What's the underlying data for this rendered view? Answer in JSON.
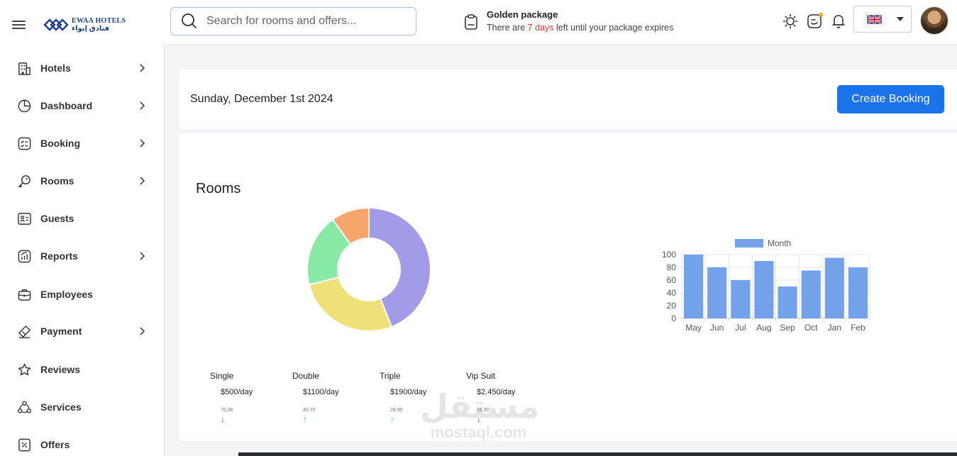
{
  "header": {
    "logo": {
      "text_en": "EWAA HOTELS",
      "text_ar": "فنادق إيواء"
    },
    "search": {
      "placeholder": "Search for rooms and offers..."
    },
    "package": {
      "title": "Golden package",
      "message_prefix": "There are ",
      "days": "7 days",
      "message_suffix": " left until your package expires"
    },
    "icons": [
      "sun-icon",
      "chat-icon",
      "bell-icon"
    ],
    "language": {
      "flag": "uk-flag-icon"
    }
  },
  "sidebar": {
    "items": [
      {
        "label": "Hotels",
        "icon": "hotel-icon",
        "has_chevron": true
      },
      {
        "label": "Dashboard",
        "icon": "pie-icon",
        "has_chevron": true
      },
      {
        "label": "Booking",
        "icon": "checklist-icon",
        "has_chevron": true
      },
      {
        "label": "Rooms",
        "icon": "key-icon",
        "has_chevron": true
      },
      {
        "label": "Guests",
        "icon": "id-card-icon",
        "has_chevron": false
      },
      {
        "label": "Reports",
        "icon": "report-icon",
        "has_chevron": true
      },
      {
        "label": "Employees",
        "icon": "briefcase-icon",
        "has_chevron": false
      },
      {
        "label": "Payment",
        "icon": "ticket-icon",
        "has_chevron": true
      },
      {
        "label": "Reviews",
        "icon": "star-icon",
        "has_chevron": false
      },
      {
        "label": "Services",
        "icon": "services-icon",
        "has_chevron": false
      },
      {
        "label": "Offers",
        "icon": "discount-icon",
        "has_chevron": false
      }
    ]
  },
  "main": {
    "date": "Sunday, December 1st 2024",
    "create_booking_label": "Create Booking",
    "rooms_title": "Rooms",
    "rooms": [
      {
        "name": "Single",
        "price": "$500/day",
        "percent": "70.36",
        "trend": "down",
        "arrow": "↓"
      },
      {
        "name": "Double",
        "price": "$1100/day",
        "percent": "40.70",
        "trend": "up",
        "arrow": "↑"
      },
      {
        "name": "Triple",
        "price": "$1900/day",
        "percent": "29.90",
        "trend": "up",
        "arrow": "↑"
      },
      {
        "name": "Vip Suit",
        "price": "$2.450/day",
        "percent": "15.30",
        "trend": "down",
        "arrow": "↓"
      }
    ],
    "watermark": {
      "ar": "مستقل",
      "en": "mostaql.com"
    }
  },
  "chart_data": [
    {
      "type": "pie",
      "variant": "doughnut",
      "values": [
        44,
        27,
        19,
        10
      ],
      "colors": [
        "#a29be8",
        "#efe07a",
        "#88eaa6",
        "#f7a66b"
      ]
    },
    {
      "type": "bar",
      "categories": [
        "May",
        "Jun",
        "Jul",
        "Aug",
        "Sep",
        "Oct",
        "Jan",
        "Feb"
      ],
      "series": [
        {
          "name": "Month",
          "values": [
            100,
            80,
            60,
            90,
            50,
            75,
            95,
            80
          ],
          "color": "#73a1ea"
        }
      ],
      "ylim": [
        0,
        100
      ],
      "yticks": [
        0,
        20,
        40,
        60,
        80,
        100
      ],
      "grid": true,
      "legend": "top"
    }
  ]
}
